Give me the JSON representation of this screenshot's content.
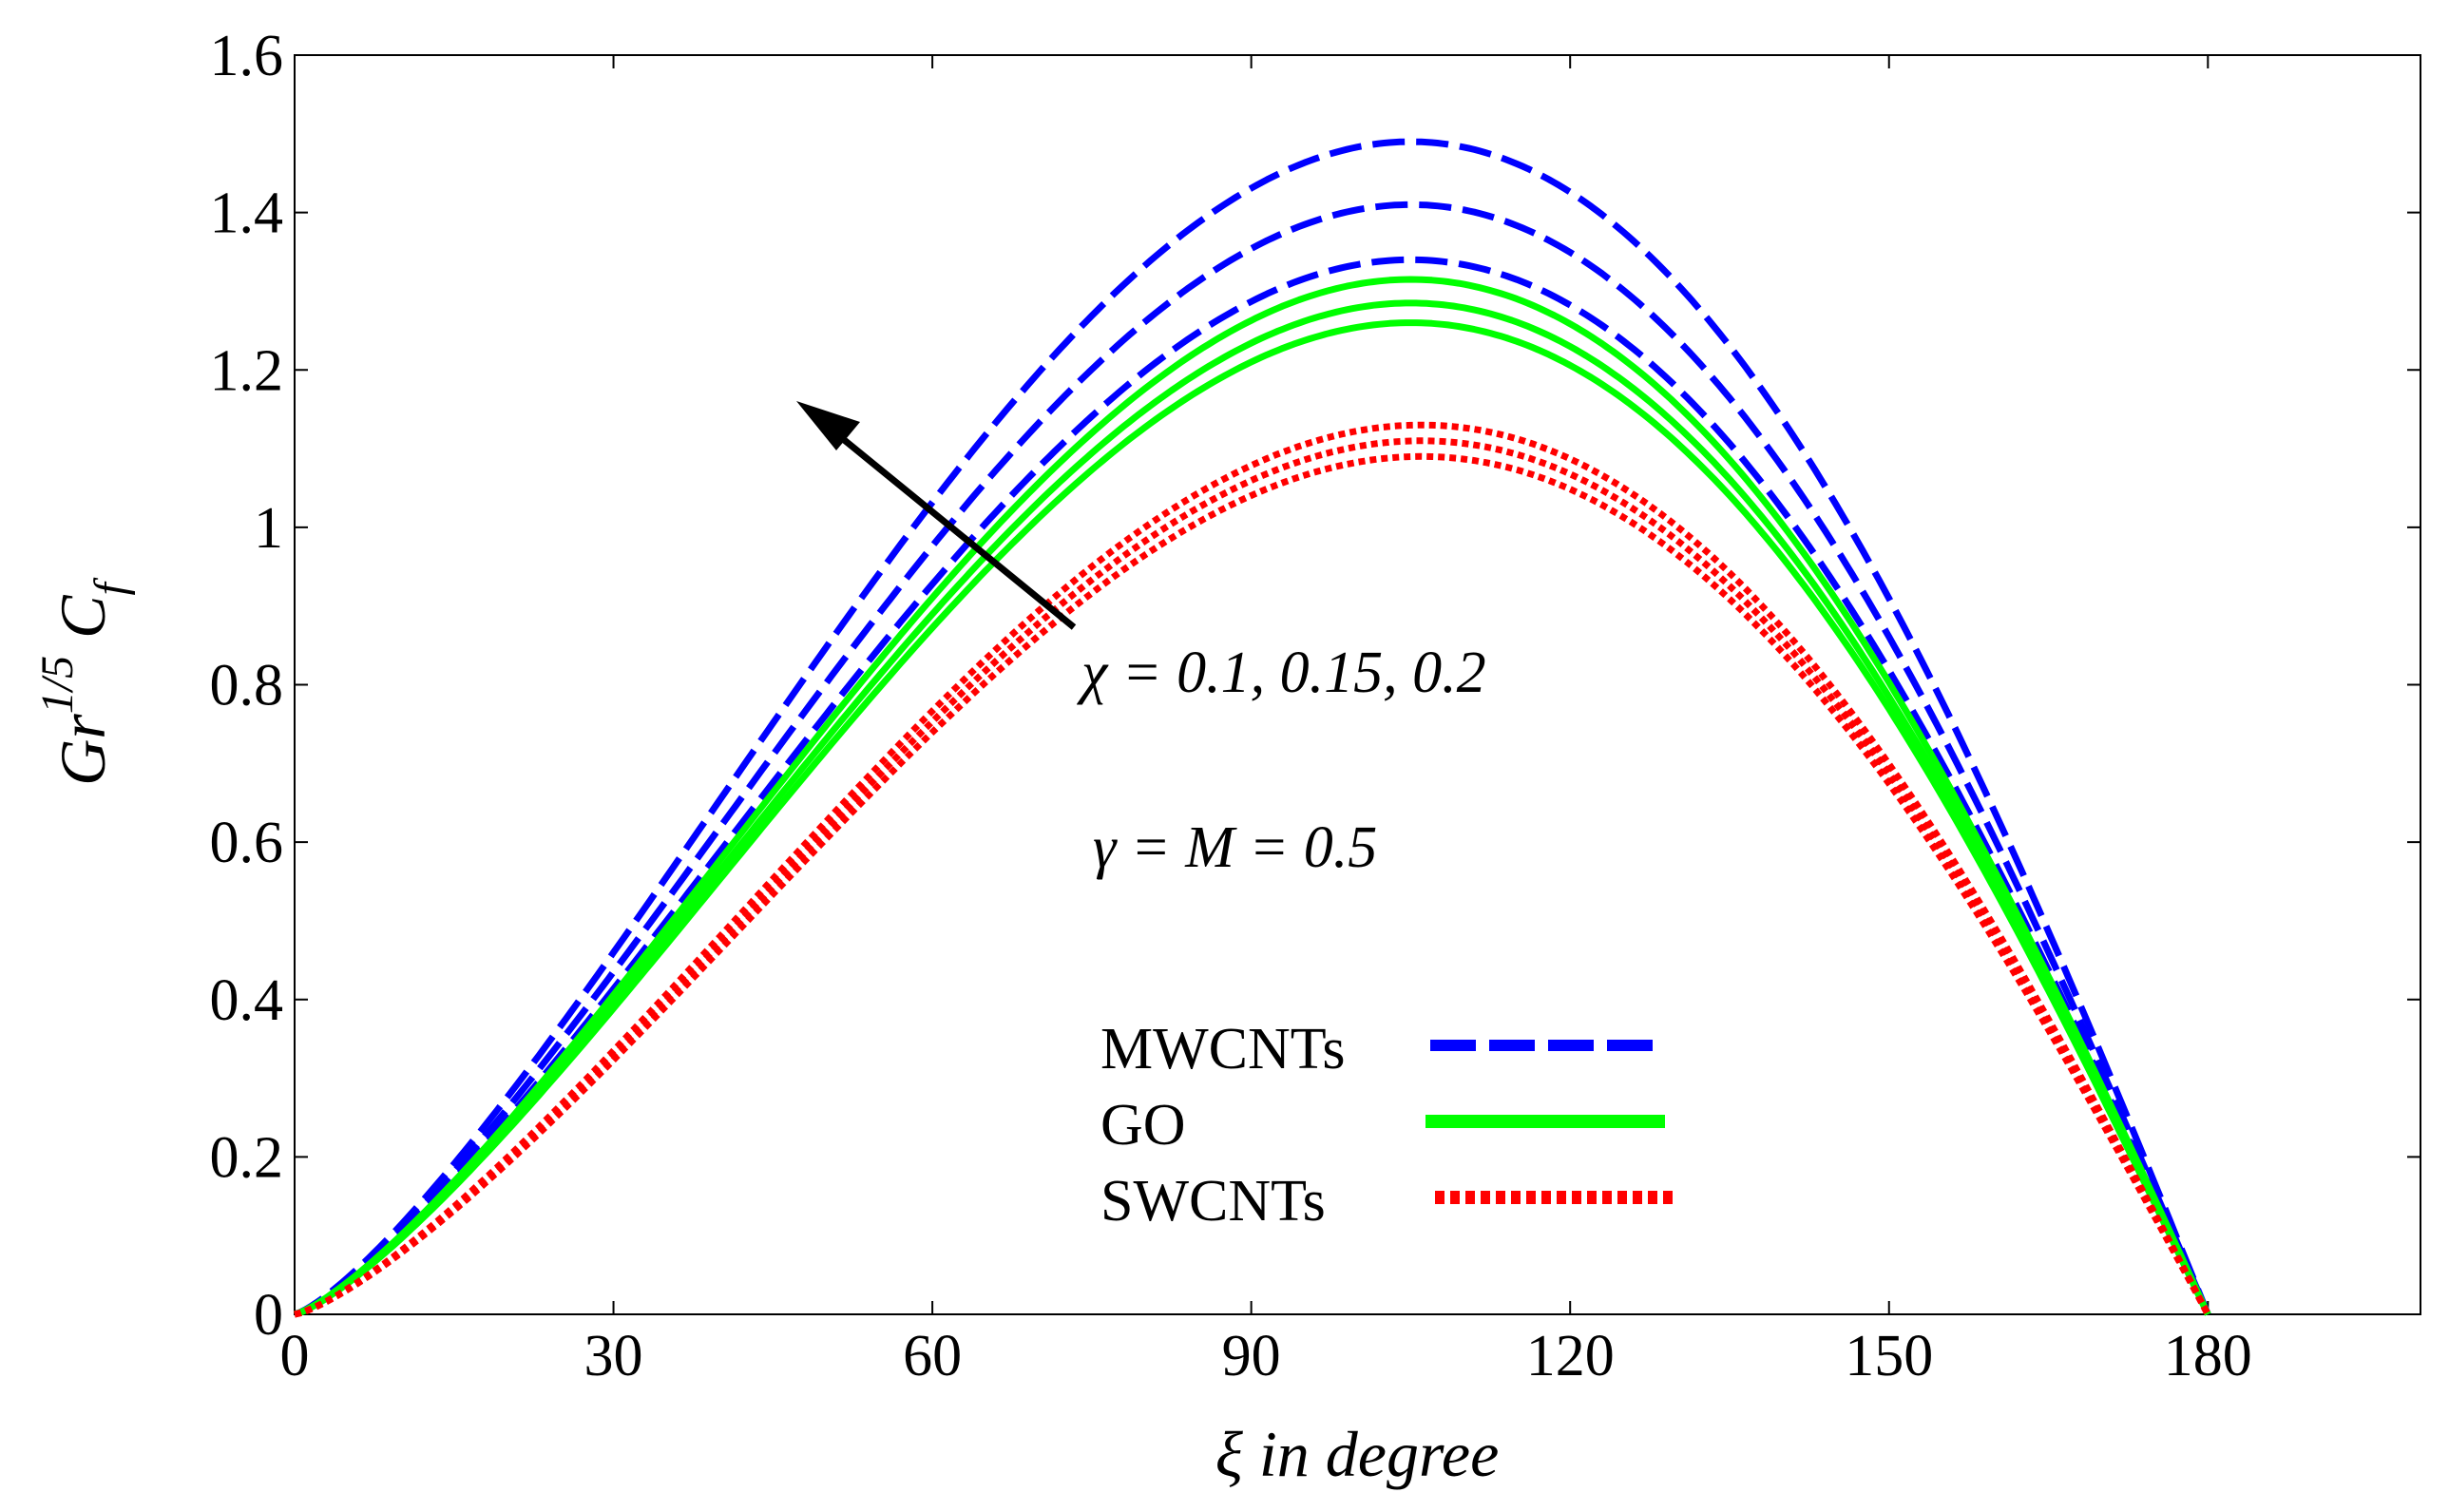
{
  "chart_data": {
    "type": "line",
    "title": "",
    "xlabel": "ξ in degree",
    "ylabel": {
      "base": "Gr",
      "exponent": "1/5",
      "symbol": "C",
      "subscript": "f"
    },
    "xlim": [
      0,
      200
    ],
    "ylim": [
      0,
      1.6
    ],
    "xticks": [
      0,
      30,
      60,
      90,
      120,
      150,
      180
    ],
    "yticks": [
      0,
      0.2,
      0.4,
      0.6,
      0.8,
      1,
      1.2,
      1.4,
      1.6
    ],
    "ytick_labels": [
      "0",
      "0.2",
      "0.4",
      "0.6",
      "0.8",
      "1",
      "1.2",
      "1.4",
      "1.6"
    ],
    "grid": false,
    "x_domain": [
      0,
      180
    ],
    "legend": {
      "position": "center-bottom",
      "entries": [
        {
          "label": "MWCNTs",
          "style": "dashed",
          "color": "#0000ff"
        },
        {
          "label": "GO",
          "style": "solid",
          "color": "#00ff00"
        },
        {
          "label": "SWCNTs",
          "style": "dotted",
          "color": "#ff0000"
        }
      ]
    },
    "annotations": {
      "chi": "χ = 0.1, 0.15, 0.2",
      "params": "γ = M = 0.5"
    },
    "series": [
      {
        "name": "MWCNTs χ=0.1",
        "group": "MWCNTs",
        "color": "#0000ff",
        "style": "dashed",
        "peak_x": 105,
        "peak_y": 1.34
      },
      {
        "name": "MWCNTs χ=0.15",
        "group": "MWCNTs",
        "color": "#0000ff",
        "style": "dashed",
        "peak_x": 105,
        "peak_y": 1.41
      },
      {
        "name": "MWCNTs χ=0.2",
        "group": "MWCNTs",
        "color": "#0000ff",
        "style": "dashed",
        "peak_x": 105,
        "peak_y": 1.49
      },
      {
        "name": "GO χ=0.1",
        "group": "GO",
        "color": "#00ff00",
        "style": "solid",
        "peak_x": 105,
        "peak_y": 1.26
      },
      {
        "name": "GO χ=0.15",
        "group": "GO",
        "color": "#00ff00",
        "style": "solid",
        "peak_x": 105,
        "peak_y": 1.285
      },
      {
        "name": "GO χ=0.2",
        "group": "GO",
        "color": "#00ff00",
        "style": "solid",
        "peak_x": 105,
        "peak_y": 1.315
      },
      {
        "name": "SWCNTs χ=0.1",
        "group": "SWCNTs",
        "color": "#ff0000",
        "style": "dotted",
        "peak_x": 106,
        "peak_y": 1.09
      },
      {
        "name": "SWCNTs χ=0.15",
        "group": "SWCNTs",
        "color": "#ff0000",
        "style": "dotted",
        "peak_x": 106,
        "peak_y": 1.11
      },
      {
        "name": "SWCNTs χ=0.2",
        "group": "SWCNTs",
        "color": "#ff0000",
        "style": "dotted",
        "peak_x": 106,
        "peak_y": 1.13
      }
    ]
  }
}
